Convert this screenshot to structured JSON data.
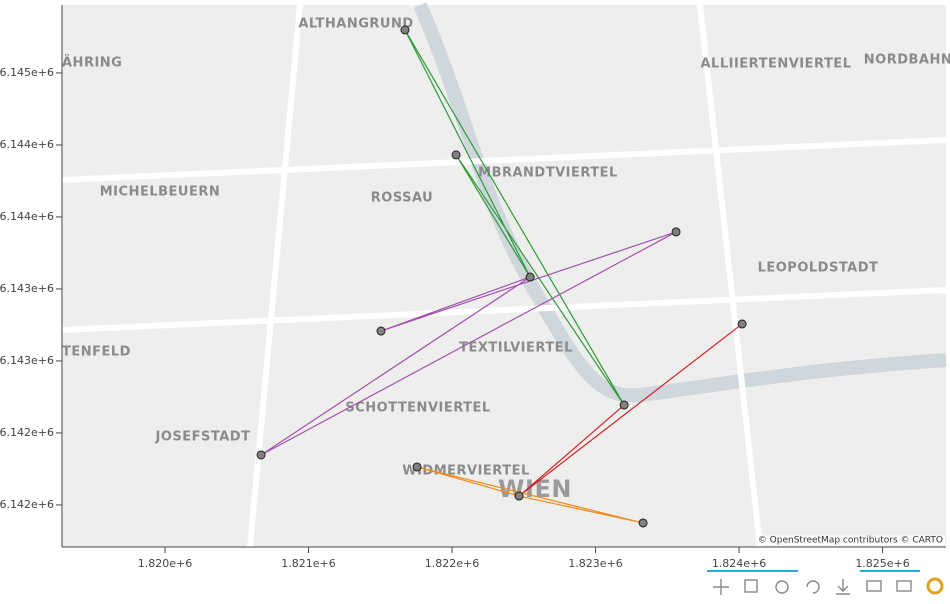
{
  "chart_data": {
    "type": "map",
    "xlim": [
      1819282,
      1825442
    ],
    "ylim": [
      6141708,
      6145472
    ],
    "xticks": [
      {
        "value": 1820000,
        "label": "1.820e+6"
      },
      {
        "value": 1821000,
        "label": "1.821e+6"
      },
      {
        "value": 1822000,
        "label": "1.822e+6"
      },
      {
        "value": 1823000,
        "label": "1.823e+6"
      },
      {
        "value": 1824000,
        "label": "1.824e+6"
      },
      {
        "value": 1825000,
        "label": "1.825e+6"
      }
    ],
    "yticks": [
      {
        "value": 6145000,
        "label": "6.145e+6"
      },
      {
        "value": 6144500,
        "label": "6.144e+6"
      },
      {
        "value": 6144000,
        "label": "6.144e+6"
      },
      {
        "value": 6143500,
        "label": "6.143e+6"
      },
      {
        "value": 6143000,
        "label": "6.143e+6"
      },
      {
        "value": 6142500,
        "label": "6.142e+6"
      },
      {
        "value": 6142000,
        "label": "6.142e+6"
      }
    ],
    "series": [
      {
        "color": "#2e9a3a",
        "x": [
          1821672,
          1822544,
          null,
          1821672,
          1823199,
          null,
          1822028,
          1822544,
          null,
          1822028,
          1823199
        ],
        "y": [
          6145299,
          6143583,
          null,
          6145299,
          6142694,
          null,
          6144431,
          6143583,
          null,
          6144431,
          6142694
        ]
      },
      {
        "color": "#a352b0",
        "x": [
          1821505,
          1822544,
          null,
          1821505,
          1823561,
          null,
          1820669,
          1822544,
          null,
          1820669,
          1823561
        ],
        "y": [
          6143208,
          6143583,
          null,
          6143208,
          6143896,
          null,
          6142347,
          6143583,
          null,
          6142347,
          6143896
        ]
      },
      {
        "color": "#d4202a",
        "x": [
          1824021,
          1822467,
          null,
          1823199,
          1822467
        ],
        "y": [
          6143257,
          6142062,
          null,
          6142694,
          6142062
        ]
      },
      {
        "color": "#f08a1c",
        "x": [
          1821756,
          1822467,
          null,
          1821756,
          1823331,
          null,
          1822467,
          1823331
        ],
        "y": [
          6142264,
          6142062,
          null,
          6142264,
          6141875,
          null,
          6142062,
          6141875
        ]
      }
    ],
    "points": {
      "color": "#808080",
      "x": [
        1821672,
        1822028,
        1822544,
        1823561,
        1821505,
        1820669,
        1824021,
        1823199,
        1821756,
        1822467,
        1823331
      ],
      "y": [
        6145299,
        6144431,
        6143583,
        6143896,
        6143208,
        6142347,
        6143257,
        6142694,
        6142264,
        6142062,
        6141875
      ]
    },
    "map_labels": [
      "ALTHANGRUND",
      "ÄHRING",
      "ALLIIERTENVIERTEL",
      "NORDBAHN",
      "MICHELBEUERN",
      "ROSSAU",
      "MBRANDTVIERTEL",
      "LEOPOLDSTADT",
      "TENFELD",
      "TEXTILVIERTEL",
      "SCHOTTENVIERTEL",
      "JOSEFSTADT",
      "WIDMERVIERTEL",
      "WIEN"
    ],
    "attribution": "© OpenStreetMap contributors © CARTO"
  }
}
